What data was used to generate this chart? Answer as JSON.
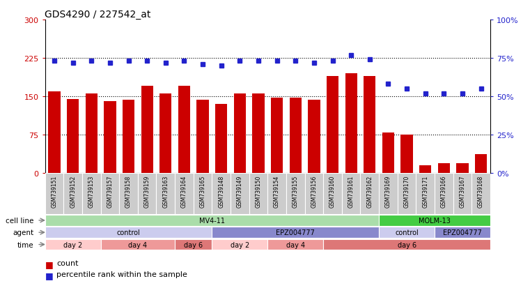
{
  "title": "GDS4290 / 227542_at",
  "samples": [
    "GSM739151",
    "GSM739152",
    "GSM739153",
    "GSM739157",
    "GSM739158",
    "GSM739159",
    "GSM739163",
    "GSM739164",
    "GSM739165",
    "GSM739148",
    "GSM739149",
    "GSM739150",
    "GSM739154",
    "GSM739155",
    "GSM739156",
    "GSM739160",
    "GSM739161",
    "GSM739162",
    "GSM739169",
    "GSM739170",
    "GSM739171",
    "GSM739166",
    "GSM739167",
    "GSM739168"
  ],
  "counts": [
    160,
    145,
    155,
    140,
    143,
    170,
    155,
    170,
    143,
    135,
    155,
    155,
    148,
    147,
    143,
    190,
    195,
    190,
    80,
    75,
    15,
    20,
    20,
    37
  ],
  "percentile_ranks": [
    73,
    72,
    73,
    72,
    73,
    73,
    72,
    73,
    71,
    70,
    73,
    73,
    73,
    73,
    72,
    73,
    77,
    74,
    58,
    55,
    52,
    52,
    52,
    55
  ],
  "bar_color": "#cc0000",
  "dot_color": "#2222cc",
  "ylim_left": [
    0,
    300
  ],
  "ylim_right": [
    0,
    100
  ],
  "yticks_left": [
    0,
    75,
    150,
    225,
    300
  ],
  "ytick_labels_left": [
    "0",
    "75",
    "150",
    "225",
    "300"
  ],
  "yticks_right": [
    0,
    25,
    50,
    75,
    100
  ],
  "ytick_labels_right": [
    "0%",
    "25%",
    "50%",
    "75%",
    "100%"
  ],
  "grid_values": [
    75,
    150,
    225
  ],
  "cell_line_groups": [
    {
      "label": "MV4-11",
      "start": 0,
      "end": 18,
      "color": "#aaddaa"
    },
    {
      "label": "MOLM-13",
      "start": 18,
      "end": 24,
      "color": "#44cc44"
    }
  ],
  "agent_groups": [
    {
      "label": "control",
      "start": 0,
      "end": 9,
      "color": "#ccccee"
    },
    {
      "label": "EPZ004777",
      "start": 9,
      "end": 18,
      "color": "#8888cc"
    },
    {
      "label": "control",
      "start": 18,
      "end": 21,
      "color": "#ccccee"
    },
    {
      "label": "EPZ004777",
      "start": 21,
      "end": 24,
      "color": "#8888cc"
    }
  ],
  "time_groups": [
    {
      "label": "day 2",
      "start": 0,
      "end": 3,
      "color": "#ffcccc"
    },
    {
      "label": "day 4",
      "start": 3,
      "end": 7,
      "color": "#ee9999"
    },
    {
      "label": "day 6",
      "start": 7,
      "end": 9,
      "color": "#dd7777"
    },
    {
      "label": "day 2",
      "start": 9,
      "end": 12,
      "color": "#ffcccc"
    },
    {
      "label": "day 4",
      "start": 12,
      "end": 15,
      "color": "#ee9999"
    },
    {
      "label": "day 6",
      "start": 15,
      "end": 24,
      "color": "#dd7777"
    }
  ],
  "legend_count_color": "#cc0000",
  "legend_pct_color": "#2222cc",
  "sample_bg_color": "#cccccc",
  "plot_bg_color": "#ffffff"
}
